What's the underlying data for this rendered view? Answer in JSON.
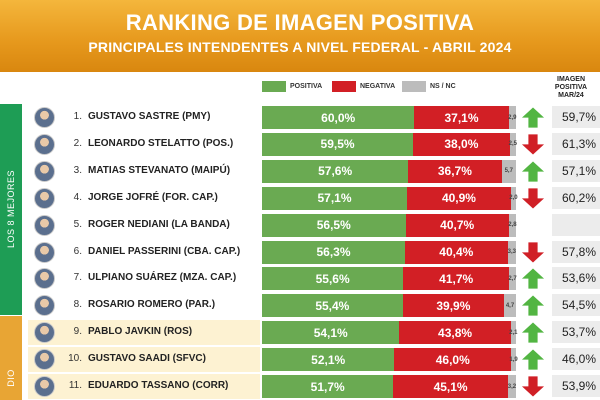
{
  "header": {
    "title": "RANKING DE IMAGEN POSITIVA",
    "subtitle": "PRINCIPALES INTENDENTES A NIVEL FEDERAL - ABRIL 2024"
  },
  "legend": {
    "positiva": "POSITIVA",
    "negativa": "NEGATIVA",
    "nsnc": "NS / NC"
  },
  "previous_column_label": "IMAGEN POSITIVA MAR/24",
  "groups": [
    {
      "label": "LOS 8 MEJORES",
      "color": "#1e9d55"
    },
    {
      "label": "DIO",
      "color": "#e8a534"
    }
  ],
  "colors": {
    "positiva": "#6aaa52",
    "negativa": "#d21f25",
    "nsnc": "#bcbcbc",
    "arrow_up": "#52b542",
    "arrow_down": "#d01f26",
    "header": "#e79a1e"
  },
  "rows": [
    {
      "rank": "1.",
      "name": "GUSTAVO SASTRE (PMY)",
      "pos_label": "60,0%",
      "neg_label": "37,1%",
      "ns_label": "2,9",
      "trend": "up",
      "prev_label": "59,7%",
      "gold": false
    },
    {
      "rank": "2.",
      "name": "LEONARDO STELATTO (POS.)",
      "pos_label": "59,5%",
      "neg_label": "38,0%",
      "ns_label": "2,5",
      "trend": "down",
      "prev_label": "61,3%",
      "gold": false
    },
    {
      "rank": "3.",
      "name": "MATIAS STEVANATO (MAIPÚ)",
      "pos_label": "57,6%",
      "neg_label": "36,7%",
      "ns_label": "5,7",
      "trend": "up",
      "prev_label": "57,1%",
      "gold": false
    },
    {
      "rank": "4.",
      "name": "JORGE JOFRÉ (FOR. CAP.)",
      "pos_label": "57,1%",
      "neg_label": "40,9%",
      "ns_label": "2,0",
      "trend": "down",
      "prev_label": "60,2%",
      "gold": false
    },
    {
      "rank": "5.",
      "name": "ROGER NEDIANI (LA BANDA)",
      "pos_label": "56,5%",
      "neg_label": "40,7%",
      "ns_label": "2,8",
      "trend": "none",
      "prev_label": "",
      "gold": false
    },
    {
      "rank": "6.",
      "name": "DANIEL PASSERINI (CBA. CAP.)",
      "pos_label": "56,3%",
      "neg_label": "40,4%",
      "ns_label": "3,3",
      "trend": "down",
      "prev_label": "57,8%",
      "gold": false
    },
    {
      "rank": "7.",
      "name": "ULPIANO SUÁREZ (MZA. CAP.)",
      "pos_label": "55,6%",
      "neg_label": "41,7%",
      "ns_label": "2,7",
      "trend": "up",
      "prev_label": "53,6%",
      "gold": false
    },
    {
      "rank": "8.",
      "name": "ROSARIO ROMERO (PAR.)",
      "pos_label": "55,4%",
      "neg_label": "39,9%",
      "ns_label": "4,7",
      "trend": "up",
      "prev_label": "54,5%",
      "gold": false
    },
    {
      "rank": "9.",
      "name": "PABLO JAVKIN (ROS)",
      "pos_label": "54,1%",
      "neg_label": "43,8%",
      "ns_label": "2,1",
      "trend": "up",
      "prev_label": "53,7%",
      "gold": true
    },
    {
      "rank": "10.",
      "name": "GUSTAVO SAADI (SFVC)",
      "pos_label": "52,1%",
      "neg_label": "46,0%",
      "ns_label": "1,9",
      "trend": "up",
      "prev_label": "46,0%",
      "gold": true
    },
    {
      "rank": "11.",
      "name": "EDUARDO TASSANO (CORR)",
      "pos_label": "51,7%",
      "neg_label": "45,1%",
      "ns_label": "3,2",
      "trend": "down",
      "prev_label": "53,9%",
      "gold": true
    }
  ],
  "chart_data": {
    "type": "bar",
    "stacked": true,
    "orientation": "horizontal",
    "title": "RANKING DE IMAGEN POSITIVA",
    "subtitle": "PRINCIPALES INTENDENTES A NIVEL FEDERAL - ABRIL 2024",
    "categories": [
      "GUSTAVO SASTRE (PMY)",
      "LEONARDO STELATTO (POS.)",
      "MATIAS STEVANATO (MAIPÚ)",
      "JORGE JOFRÉ (FOR. CAP.)",
      "ROGER NEDIANI (LA BANDA)",
      "DANIEL PASSERINI (CBA. CAP.)",
      "ULPIANO SUÁREZ (MZA. CAP.)",
      "ROSARIO ROMERO (PAR.)",
      "PABLO JAVKIN (ROS)",
      "GUSTAVO SAADI (SFVC)",
      "EDUARDO TASSANO (CORR)"
    ],
    "series": [
      {
        "name": "POSITIVA",
        "values": [
          60.0,
          59.5,
          57.6,
          57.1,
          56.5,
          56.3,
          55.6,
          55.4,
          54.1,
          52.1,
          51.7
        ]
      },
      {
        "name": "NEGATIVA",
        "values": [
          37.1,
          38.0,
          36.7,
          40.9,
          40.7,
          40.4,
          41.7,
          39.9,
          43.8,
          46.0,
          45.1
        ]
      },
      {
        "name": "NS / NC",
        "values": [
          2.9,
          2.5,
          5.7,
          2.0,
          2.8,
          3.3,
          2.7,
          4.7,
          2.1,
          1.9,
          3.2
        ]
      }
    ],
    "previous_positive": [
      59.7,
      61.3,
      57.1,
      60.2,
      null,
      57.8,
      53.6,
      54.5,
      53.7,
      46.0,
      53.9
    ],
    "xlim": [
      0,
      100
    ],
    "legend_position": "top"
  }
}
